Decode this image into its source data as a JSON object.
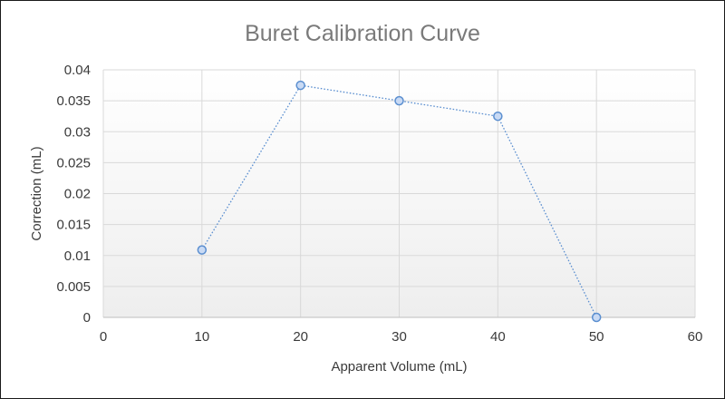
{
  "chart_data": {
    "type": "scatter",
    "title": "Buret Calibration Curve",
    "xlabel": "Apparent Volume (mL)",
    "ylabel": "Correction (mL)",
    "xlim": [
      0,
      60
    ],
    "ylim": [
      0,
      0.04
    ],
    "xticks": [
      0,
      10,
      20,
      30,
      40,
      50,
      60
    ],
    "xtick_labels": [
      "0",
      "10",
      "20",
      "30",
      "40",
      "50",
      "60"
    ],
    "yticks": [
      0,
      0.005,
      0.01,
      0.015,
      0.02,
      0.025,
      0.03,
      0.035,
      0.04
    ],
    "ytick_labels": [
      "0",
      "0.005",
      "0.01",
      "0.015",
      "0.02",
      "0.025",
      "0.03",
      "0.035",
      "0.04"
    ],
    "grid": true,
    "legend": "none",
    "series": [
      {
        "name": "Correction",
        "x": [
          10,
          20,
          30,
          40,
          50
        ],
        "y": [
          0.0109,
          0.0375,
          0.035,
          0.0325,
          0.0
        ],
        "line_style": "dotted",
        "marker": "circle",
        "color": "#5b8fd0",
        "marker_fill": "#c9daf4"
      }
    ]
  }
}
